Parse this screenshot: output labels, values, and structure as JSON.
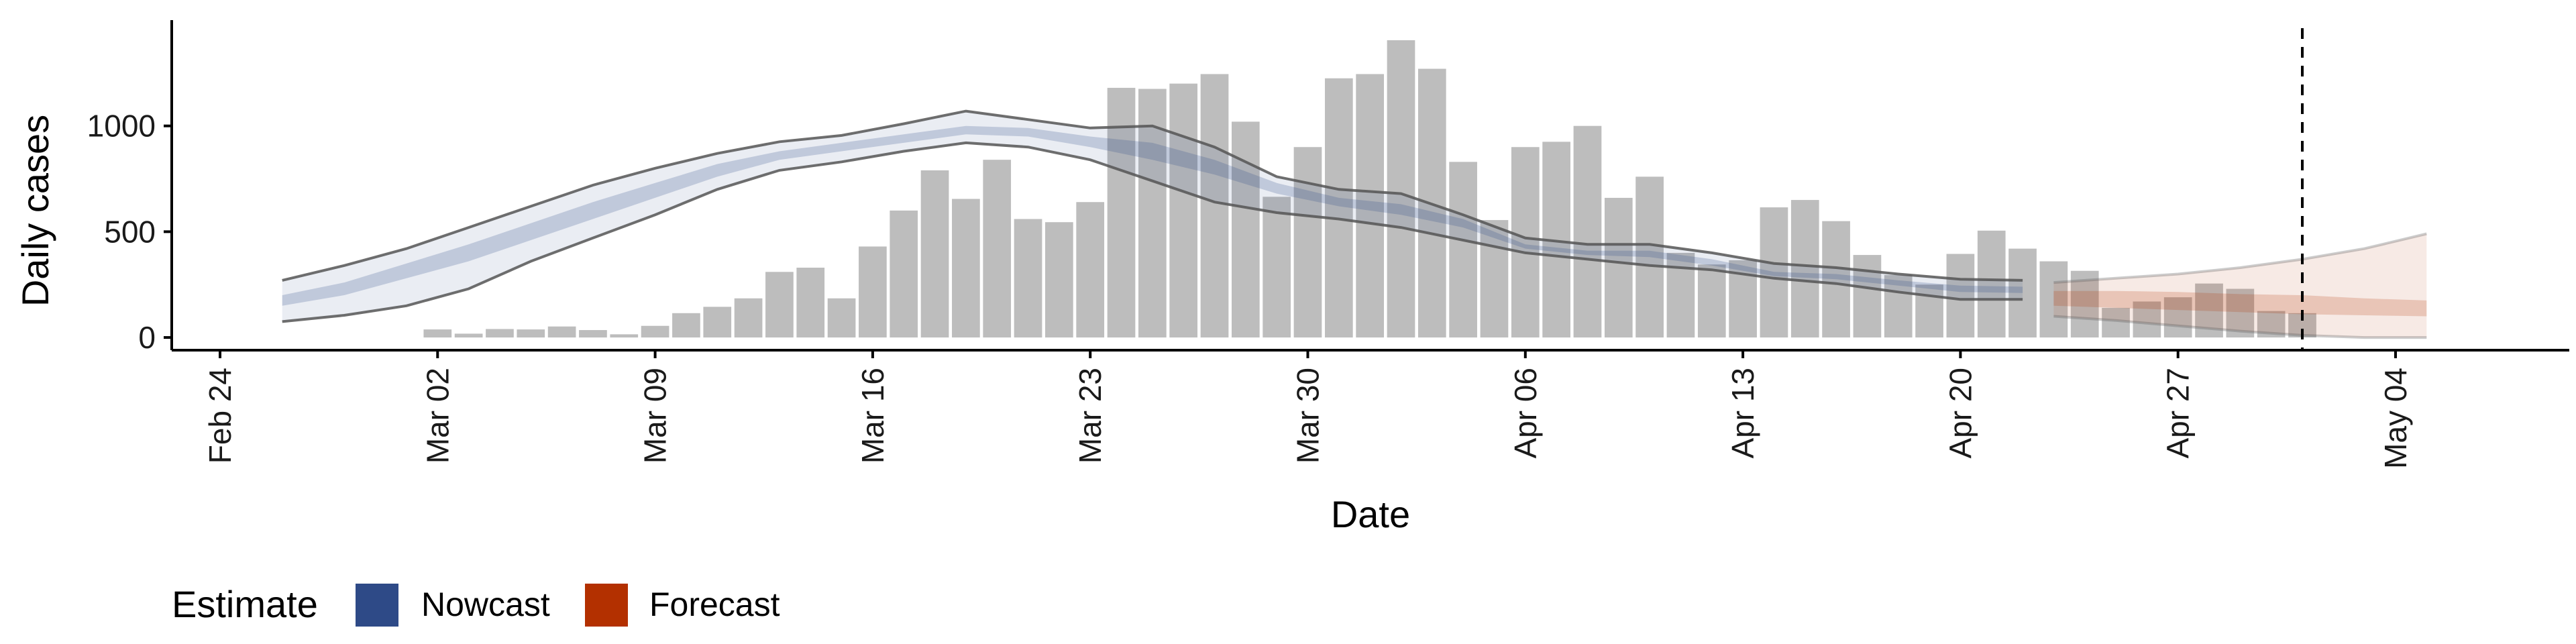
{
  "chart_data": {
    "type": "bar",
    "xlabel": "Date",
    "ylabel": "Daily cases",
    "x_range": [
      "2020-02-24",
      "2020-05-08"
    ],
    "ylim": [
      -60,
      1500
    ],
    "y_ticks": [
      0,
      500,
      1000
    ],
    "x_tick_dates": [
      "2020-02-24",
      "2020-03-02",
      "2020-03-09",
      "2020-03-16",
      "2020-03-23",
      "2020-03-30",
      "2020-04-06",
      "2020-04-13",
      "2020-04-20",
      "2020-04-27",
      "2020-05-04"
    ],
    "x_tick_labels": [
      "Feb 24",
      "Mar 02",
      "Mar 09",
      "Mar 16",
      "Mar 23",
      "Mar 30",
      "Apr 06",
      "Apr 13",
      "Apr 20",
      "Apr 27",
      "May 04"
    ],
    "grid": false,
    "vline_date": "2020-05-01",
    "bar_color": "#bdbdbd",
    "cases": {
      "dates": [
        "2020-03-02",
        "2020-03-03",
        "2020-03-04",
        "2020-03-05",
        "2020-03-06",
        "2020-03-07",
        "2020-03-08",
        "2020-03-09",
        "2020-03-10",
        "2020-03-11",
        "2020-03-12",
        "2020-03-13",
        "2020-03-14",
        "2020-03-15",
        "2020-03-16",
        "2020-03-17",
        "2020-03-18",
        "2020-03-19",
        "2020-03-20",
        "2020-03-21",
        "2020-03-22",
        "2020-03-23",
        "2020-03-24",
        "2020-03-25",
        "2020-03-26",
        "2020-03-27",
        "2020-03-28",
        "2020-03-29",
        "2020-03-30",
        "2020-03-31",
        "2020-04-01",
        "2020-04-02",
        "2020-04-03",
        "2020-04-04",
        "2020-04-05",
        "2020-04-06",
        "2020-04-07",
        "2020-04-08",
        "2020-04-09",
        "2020-04-10",
        "2020-04-11",
        "2020-04-12",
        "2020-04-13",
        "2020-04-14",
        "2020-04-15",
        "2020-04-16",
        "2020-04-17",
        "2020-04-18",
        "2020-04-19",
        "2020-04-20",
        "2020-04-21",
        "2020-04-22",
        "2020-04-23",
        "2020-04-24",
        "2020-04-25",
        "2020-04-26",
        "2020-04-27",
        "2020-04-28",
        "2020-04-29",
        "2020-04-30",
        "2020-05-01"
      ],
      "values": [
        38,
        18,
        40,
        38,
        52,
        35,
        15,
        55,
        115,
        145,
        185,
        310,
        330,
        185,
        430,
        600,
        790,
        655,
        840,
        560,
        545,
        640,
        1180,
        1175,
        1200,
        1245,
        1020,
        665,
        900,
        1225,
        1245,
        1405,
        1270,
        830,
        555,
        900,
        925,
        1000,
        660,
        760,
        400,
        345,
        365,
        615,
        650,
        550,
        390,
        295,
        250,
        395,
        505,
        420,
        360,
        315,
        140,
        170,
        190,
        255,
        230,
        125,
        115
      ]
    },
    "legend": {
      "title": "Estimate",
      "position": "bottom-left",
      "entries": [
        {
          "name": "Nowcast",
          "color": "#2e4a87"
        },
        {
          "name": "Forecast",
          "color": "#b33000"
        }
      ]
    },
    "nowcast": {
      "color": "#2e4a87",
      "dates": [
        "2020-02-26",
        "2020-02-28",
        "2020-03-01",
        "2020-03-03",
        "2020-03-05",
        "2020-03-07",
        "2020-03-09",
        "2020-03-11",
        "2020-03-13",
        "2020-03-15",
        "2020-03-17",
        "2020-03-19",
        "2020-03-21",
        "2020-03-23",
        "2020-03-25",
        "2020-03-27",
        "2020-03-29",
        "2020-03-31",
        "2020-04-02",
        "2020-04-04",
        "2020-04-06",
        "2020-04-08",
        "2020-04-10",
        "2020-04-12",
        "2020-04-14",
        "2020-04-16",
        "2020-04-18",
        "2020-04-20",
        "2020-04-22"
      ],
      "upper90": [
        270,
        340,
        420,
        520,
        620,
        720,
        800,
        870,
        925,
        955,
        1010,
        1070,
        1030,
        990,
        1000,
        900,
        760,
        700,
        680,
        580,
        470,
        440,
        440,
        400,
        350,
        330,
        300,
        275,
        270
      ],
      "upper50": [
        200,
        260,
        350,
        440,
        540,
        640,
        730,
        820,
        880,
        920,
        960,
        1000,
        990,
        950,
        920,
        840,
        730,
        660,
        630,
        560,
        440,
        410,
        410,
        370,
        310,
        300,
        270,
        245,
        240
      ],
      "lower50": [
        150,
        200,
        280,
        360,
        460,
        560,
        660,
        760,
        840,
        880,
        920,
        960,
        950,
        900,
        840,
        770,
        680,
        620,
        580,
        520,
        420,
        390,
        380,
        340,
        290,
        275,
        245,
        215,
        210
      ],
      "lower90": [
        75,
        105,
        150,
        230,
        360,
        470,
        580,
        700,
        790,
        830,
        880,
        920,
        900,
        840,
        740,
        640,
        590,
        560,
        520,
        460,
        400,
        370,
        340,
        320,
        280,
        255,
        215,
        180,
        180
      ]
    },
    "forecast": {
      "color": "#b33000",
      "dates": [
        "2020-04-23",
        "2020-04-25",
        "2020-04-27",
        "2020-04-29",
        "2020-05-01",
        "2020-05-03",
        "2020-05-05"
      ],
      "upper90": [
        260,
        280,
        300,
        330,
        370,
        420,
        490
      ],
      "upper50": [
        220,
        220,
        215,
        205,
        200,
        185,
        175
      ],
      "lower50": [
        150,
        140,
        130,
        120,
        110,
        105,
        100
      ],
      "lower90": [
        100,
        80,
        55,
        30,
        10,
        0,
        0
      ]
    }
  }
}
